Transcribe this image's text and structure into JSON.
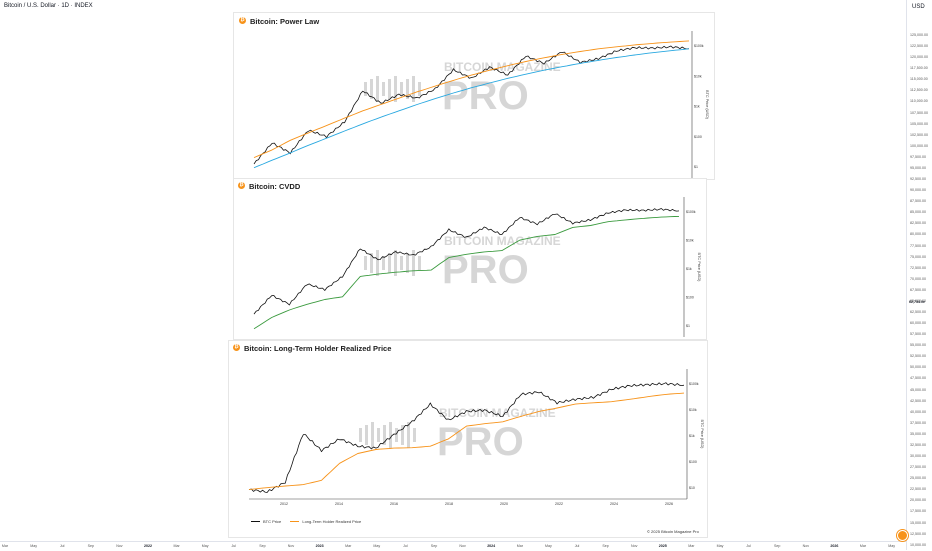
{
  "header": {
    "title": "Bitcoin / U.S. Dollar · 1D · INDEX"
  },
  "price_axis": {
    "currency": "USD",
    "ticks": [
      "125,000.00",
      "122,500.00",
      "120,000.00",
      "117,500.00",
      "115,000.00",
      "112,500.00",
      "110,000.00",
      "107,500.00",
      "105,000.00",
      "102,500.00",
      "100,000.00",
      "97,500.00",
      "95,000.00",
      "92,500.00",
      "90,000.00",
      "87,500.00",
      "85,000.00",
      "82,500.00",
      "80,000.00",
      "77,500.00",
      "75,000.00",
      "72,500.00",
      "70,000.00",
      "67,500.00",
      "65,000.00",
      "62,500.00",
      "60,000.00",
      "57,500.00",
      "55,000.00",
      "52,500.00",
      "50,000.00",
      "47,500.00",
      "45,000.00",
      "42,500.00",
      "40,000.00",
      "37,500.00",
      "35,000.00",
      "32,500.00",
      "30,000.00",
      "27,500.00",
      "25,000.00",
      "22,500.00",
      "20,000.00",
      "17,500.00",
      "15,000.00",
      "12,500.00",
      "10,000.00"
    ],
    "last_price": "62,734.0e"
  },
  "time_axis": {
    "ticks": [
      {
        "label": "Mar",
        "major": false
      },
      {
        "label": "May",
        "major": false
      },
      {
        "label": "Jul",
        "major": false
      },
      {
        "label": "Sep",
        "major": false
      },
      {
        "label": "Nov",
        "major": false
      },
      {
        "label": "2022",
        "major": true
      },
      {
        "label": "Mar",
        "major": false
      },
      {
        "label": "May",
        "major": false
      },
      {
        "label": "Jul",
        "major": false
      },
      {
        "label": "Sep",
        "major": false
      },
      {
        "label": "Nov",
        "major": false
      },
      {
        "label": "2023",
        "major": true
      },
      {
        "label": "Mar",
        "major": false
      },
      {
        "label": "May",
        "major": false
      },
      {
        "label": "Jul",
        "major": false
      },
      {
        "label": "Sep",
        "major": false
      },
      {
        "label": "Nov",
        "major": false
      },
      {
        "label": "2024",
        "major": true
      },
      {
        "label": "Mar",
        "major": false
      },
      {
        "label": "May",
        "major": false
      },
      {
        "label": "Jul",
        "major": false
      },
      {
        "label": "Sep",
        "major": false
      },
      {
        "label": "Nov",
        "major": false
      },
      {
        "label": "2025",
        "major": true
      },
      {
        "label": "Mar",
        "major": false
      },
      {
        "label": "May",
        "major": false
      },
      {
        "label": "Jul",
        "major": false
      },
      {
        "label": "Sep",
        "major": false
      },
      {
        "label": "Nov",
        "major": false
      },
      {
        "label": "2026",
        "major": true
      },
      {
        "label": "Mar",
        "major": false
      },
      {
        "label": "May",
        "major": false
      }
    ]
  },
  "colors": {
    "price": "#111111",
    "power_law_upper": "#f7931a",
    "power_law_lower": "#29a8e0",
    "cvdd": "#3a9a3e",
    "lth": "#f7931a",
    "watermark": "#d6d6d6"
  },
  "chart_data": [
    {
      "type": "line",
      "title": "Bitcoin: Power Law",
      "yscale": "log",
      "ylabel": "BTC Price (USD)",
      "y_tick_labels": [
        "$100k",
        "$10k",
        "$1k",
        "$100",
        "$1"
      ],
      "watermark": "BITCOIN MAGAZINE PRO",
      "series": [
        {
          "role": "price",
          "values": [
            0.3,
            3,
            1,
            12,
            6,
            30,
            900,
            230,
            600,
            400,
            1100,
            9000,
            3500,
            12000,
            5000,
            40000,
            18000,
            65000,
            20000,
            30000,
            70000,
            100000,
            95000,
            110000,
            90000
          ]
        },
        {
          "role": "upper",
          "values": [
            0.6,
            1.4,
            4,
            9,
            20,
            45,
            100,
            200,
            400,
            800,
            1500,
            2800,
            5000,
            8500,
            14000,
            22000,
            33000,
            48000,
            66000,
            88000,
            110000,
            135000,
            160000,
            185000,
            210000
          ]
        },
        {
          "role": "lower",
          "values": [
            0.2,
            0.45,
            1,
            2.3,
            5,
            11,
            24,
            50,
            100,
            200,
            380,
            700,
            1250,
            2100,
            3500,
            5500,
            8500,
            12500,
            18000,
            25000,
            34000,
            45000,
            58000,
            72000,
            88000
          ]
        }
      ]
    },
    {
      "type": "line",
      "title": "Bitcoin: CVDD",
      "yscale": "log",
      "ylabel": "BTC Price (USD)",
      "y_tick_labels": [
        "$100k",
        "$10k",
        "$1k",
        "$100",
        "$1"
      ],
      "watermark": "BITCOIN MAGAZINE PRO",
      "series": [
        {
          "role": "price",
          "values": [
            0.3,
            3,
            1,
            12,
            6,
            30,
            900,
            230,
            600,
            400,
            1100,
            9000,
            3500,
            12000,
            5000,
            40000,
            18000,
            65000,
            20000,
            30000,
            70000,
            100000,
            95000,
            110000,
            90000
          ]
        },
        {
          "role": "cvdd",
          "values": [
            0.05,
            0.2,
            0.5,
            1,
            1.8,
            2.5,
            30,
            40,
            50,
            60,
            65,
            300,
            450,
            600,
            700,
            2500,
            4000,
            5000,
            12000,
            15000,
            24000,
            30000,
            36000,
            42000,
            46000
          ]
        }
      ]
    },
    {
      "type": "line",
      "title": "Bitcoin: Long-Term Holder Realized Price",
      "yscale": "log",
      "ylabel": "BTC Price (USD)",
      "y_tick_labels": [
        "$100k",
        "$10k",
        "$1k",
        "$100",
        "$10"
      ],
      "x_tick_labels": [
        "2012",
        "2014",
        "2016",
        "2018",
        "2020",
        "2022",
        "2024",
        "2026"
      ],
      "watermark": "BITCOIN MAGAZINE PRO",
      "legend": [
        "BTC Price",
        "Long-Term Holder Realized Price"
      ],
      "footer": "© 2025 Bitcoin Magazine Pro",
      "series": [
        {
          "name": "BTC Price",
          "role": "price",
          "values": [
            5,
            4,
            10,
            1000,
            200,
            600,
            300,
            250,
            900,
            3000,
            16000,
            3500,
            8000,
            9000,
            5000,
            40000,
            50000,
            18000,
            25000,
            30000,
            65000,
            90000,
            100000,
            110000,
            95000
          ]
        },
        {
          "name": "Long-Term Holder Realized Price",
          "role": "lth",
          "values": [
            5,
            6,
            7,
            8,
            12,
            60,
            150,
            220,
            250,
            260,
            300,
            600,
            2000,
            2500,
            3000,
            5000,
            8000,
            11000,
            16000,
            18000,
            20000,
            25000,
            32000,
            40000,
            45000
          ]
        }
      ]
    }
  ]
}
